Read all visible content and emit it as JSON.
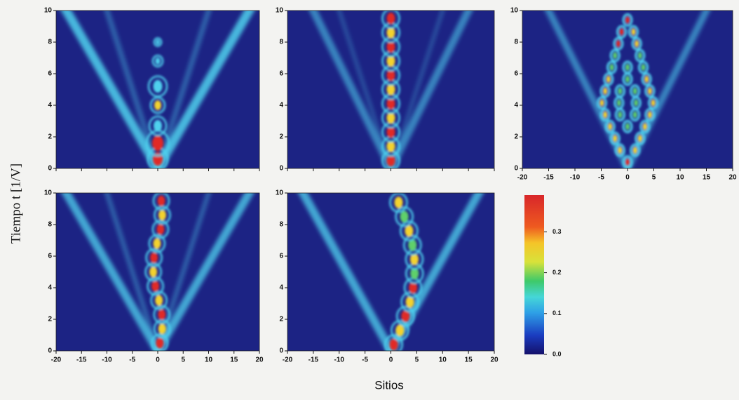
{
  "figure": {
    "ylabel": "Tiempo  t [1/V]",
    "xlabel": "Sitios"
  },
  "chart_data": [
    {
      "type": "heatmap",
      "xlim": [
        -20,
        20
      ],
      "ylim": [
        0,
        10
      ],
      "yticks": [
        0,
        2,
        4,
        6,
        8,
        10
      ],
      "xticks": [
        -20,
        -15,
        -10,
        -5,
        0,
        5,
        10,
        15,
        20
      ],
      "xticklabels": false
    },
    {
      "type": "heatmap",
      "xlim": [
        -20,
        20
      ],
      "ylim": [
        0,
        10
      ],
      "yticks": [
        0,
        2,
        4,
        6,
        8,
        10
      ],
      "xticks": [
        -20,
        -15,
        -10,
        -5,
        0,
        5,
        10,
        15,
        20
      ],
      "xticklabels": false
    },
    {
      "type": "heatmap",
      "xlim": [
        -20,
        20
      ],
      "ylim": [
        0,
        10
      ],
      "yticks": [
        0,
        2,
        4,
        6,
        8,
        10
      ],
      "xticks": [
        -20,
        -15,
        -10,
        -5,
        0,
        5,
        10,
        15,
        20
      ],
      "xticklabels": true
    },
    {
      "type": "heatmap",
      "xlim": [
        -20,
        20
      ],
      "ylim": [
        0,
        10
      ],
      "yticks": [
        0,
        2,
        4,
        6,
        8,
        10
      ],
      "xticks": [
        -20,
        -15,
        -10,
        -5,
        0,
        5,
        10,
        15,
        20
      ],
      "xticklabels": true
    },
    {
      "type": "heatmap",
      "xlim": [
        -20,
        20
      ],
      "ylim": [
        0,
        10
      ],
      "yticks": [
        0,
        2,
        4,
        6,
        8,
        10
      ],
      "xticks": [
        -20,
        -15,
        -10,
        -5,
        0,
        5,
        10,
        15,
        20
      ],
      "xticklabels": true
    },
    {
      "type": "colorbar",
      "ylim": [
        0,
        0.39
      ],
      "yticks": [
        {
          "value": 0,
          "label": "0.0"
        },
        0.1,
        0.2,
        0.3
      ]
    }
  ]
}
